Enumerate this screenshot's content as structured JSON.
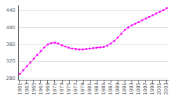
{
  "chart_data": {
    "type": "line",
    "x": [
      1961,
      1962,
      1963,
      1964,
      1965,
      1966,
      1967,
      1968,
      1969,
      1970,
      1971,
      1972,
      1973,
      1974,
      1975,
      1976,
      1977,
      1978,
      1979,
      1980,
      1981,
      1982,
      1983,
      1984,
      1985,
      1986,
      1987,
      1988,
      1989,
      1990,
      1991,
      1992,
      1993,
      1994,
      1995,
      1996,
      1997,
      1998,
      1999,
      2000,
      2001,
      2002,
      2003
    ],
    "values": [
      290,
      299,
      308,
      317,
      326,
      335,
      344,
      353,
      360,
      363,
      364,
      362,
      358,
      355,
      352,
      350,
      349,
      348,
      348,
      349,
      350,
      351,
      352,
      353,
      354,
      357,
      362,
      368,
      376,
      385,
      394,
      400,
      405,
      409,
      413,
      417,
      421,
      425,
      429,
      433,
      437,
      441,
      446
    ],
    "color": "#ff00ff",
    "marker": "circle",
    "xlim": [
      1960.5,
      2003.5
    ],
    "xticks": [
      1961,
      1963,
      1965,
      1967,
      1969,
      1971,
      1973,
      1975,
      1977,
      1979,
      1981,
      1983,
      1985,
      1987,
      1989,
      1991,
      1993,
      1995,
      1997,
      1999,
      2001,
      2003
    ],
    "ylim": [
      276,
      452
    ],
    "yticks": [
      280,
      320,
      360,
      400,
      440
    ],
    "grid": "y"
  }
}
